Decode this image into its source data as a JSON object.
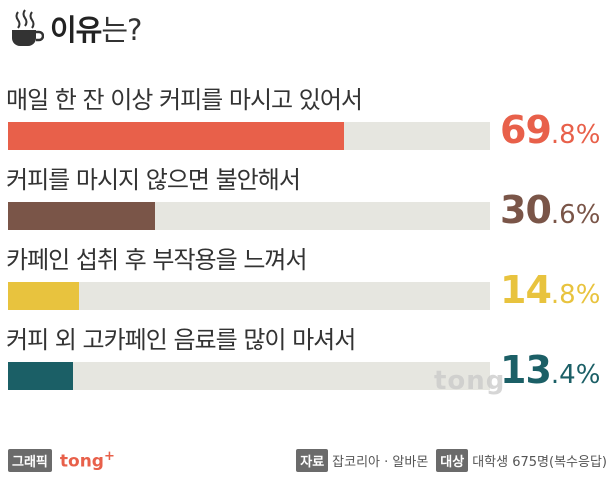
{
  "header": {
    "title_strong": "이유",
    "title_rest": "는?",
    "icon": "coffee-cup-icon"
  },
  "chart_data": {
    "type": "bar",
    "orientation": "horizontal",
    "xlim": [
      0,
      100
    ],
    "categories": [
      "매일 한 잔 이상 커피를 마시고 있어서",
      "커피를 마시지 않으면 불안해서",
      "카페인 섭취 후 부작용을 느껴서",
      "커피 외 고카페인 음료를 많이 마셔서"
    ],
    "values": [
      69.8,
      30.6,
      14.8,
      13.4
    ],
    "value_int": [
      "69",
      "30",
      "14",
      "13"
    ],
    "value_dec": [
      ".8%",
      ".6%",
      ".8%",
      ".4%"
    ],
    "colors": [
      "#e8604a",
      "#7a5548",
      "#e8c33e",
      "#1b5f66"
    ],
    "track_color": "#e6e6e0"
  },
  "watermark": "tong",
  "footer": {
    "graphic_tag": "그래픽",
    "brand": "tong",
    "brand_plus": "+",
    "source_tag": "자료",
    "source": "잡코리아 · 알바몬",
    "target_tag": "대상",
    "target": "대학생 675명(복수응답)"
  }
}
